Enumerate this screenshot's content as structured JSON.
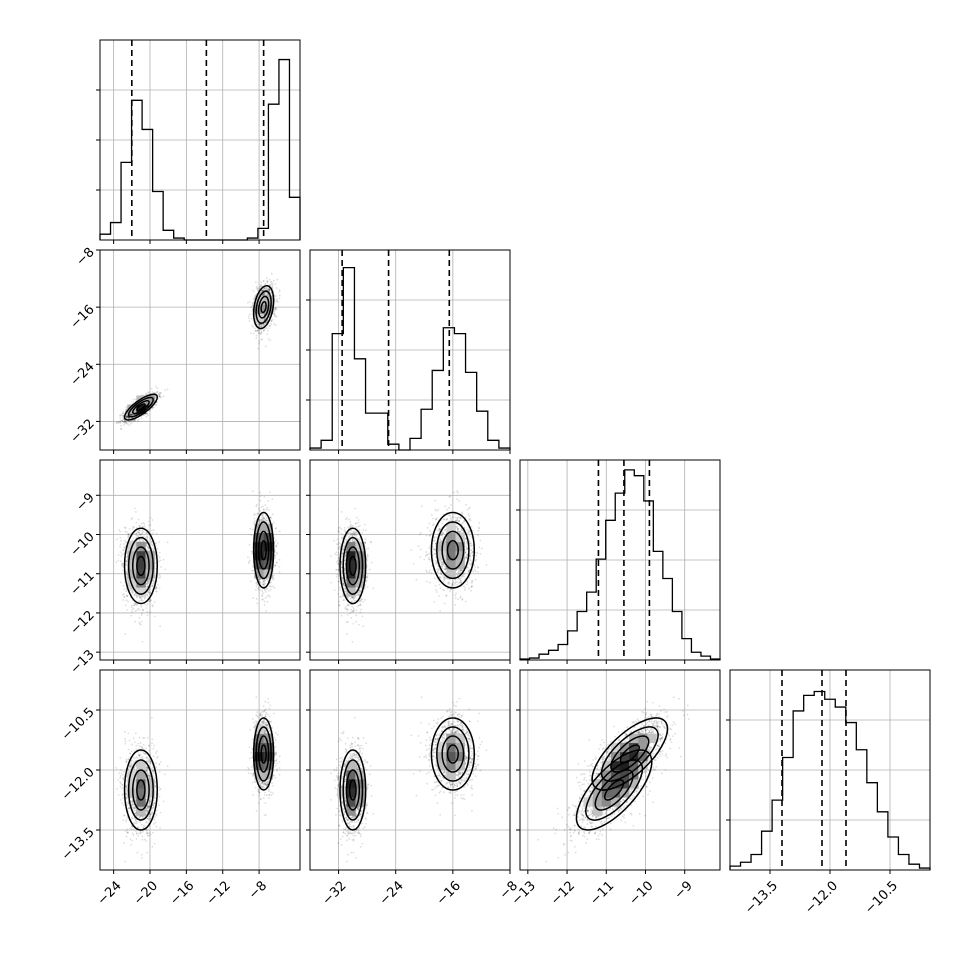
{
  "chart_data": {
    "type": "corner",
    "parameters": [
      {
        "range": [
          -25.5,
          -3.5
        ],
        "ticks": [
          -24,
          -20,
          -16,
          -12,
          -8
        ],
        "quantiles": [
          -22,
          -13.8,
          -7.5
        ],
        "hist": [
          0.03,
          0.09,
          0.4,
          0.72,
          0.57,
          0.25,
          0.05,
          0.01,
          0,
          0,
          0,
          0,
          0,
          0,
          0.01,
          0.06,
          0.7,
          0.93,
          0.22
        ]
      },
      {
        "range": [
          -36,
          -8
        ],
        "ticks": [
          -32,
          -24,
          -16,
          -8
        ],
        "quantiles": [
          -31.5,
          -25,
          -16.5
        ],
        "hist": [
          0.01,
          0.05,
          0.6,
          0.94,
          0.47,
          0.19,
          0.19,
          0.03,
          0.0,
          0.06,
          0.21,
          0.41,
          0.63,
          0.6,
          0.4,
          0.2,
          0.05,
          0.01
        ]
      },
      {
        "range": [
          -13.2,
          -8.1
        ],
        "ticks": [
          -13,
          -12,
          -11,
          -10,
          -9
        ],
        "quantiles": [
          -11.2,
          -10.55,
          -9.9
        ],
        "hist": [
          0.005,
          0.01,
          0.03,
          0.05,
          0.08,
          0.15,
          0.25,
          0.35,
          0.52,
          0.72,
          0.86,
          0.98,
          0.95,
          0.82,
          0.56,
          0.42,
          0.25,
          0.11,
          0.04,
          0.02,
          0.005
        ]
      },
      {
        "range": [
          -14.5,
          -9.5
        ],
        "ticks": [
          -13.5,
          -12.0,
          -10.5
        ],
        "quantiles": [
          -13.2,
          -12.2,
          -11.6
        ],
        "hist": [
          0.02,
          0.04,
          0.08,
          0.2,
          0.36,
          0.58,
          0.82,
          0.9,
          0.92,
          0.88,
          0.84,
          0.76,
          0.62,
          0.45,
          0.3,
          0.17,
          0.08,
          0.03,
          0.01
        ]
      }
    ],
    "tick_label_text": [
      [
        "−24",
        "−20",
        "−16",
        "−12",
        "−8"
      ],
      [
        "−32",
        "−24",
        "−16",
        "−8"
      ],
      [
        "−13",
        "−12",
        "−11",
        "−10",
        "−9"
      ],
      [
        "−13.5",
        "−12.0",
        "−10.5"
      ]
    ],
    "modes": [
      {
        "center": [
          -21,
          -30
        ],
        "sd": [
          0.9,
          0.9
        ],
        "rho": 0.78,
        "weight": 0.5,
        "p2": {
          "center": -10.8,
          "sd": 0.48
        },
        "p3": {
          "center": -12.5,
          "sd": 0.5
        }
      },
      {
        "center": [
          -7.5,
          -16
        ],
        "sd": [
          0.55,
          1.5
        ],
        "rho": 0.3,
        "weight": 0.5,
        "p2": {
          "center": -10.4,
          "sd": 0.48
        },
        "p3": {
          "center": -11.6,
          "sd": 0.45
        }
      }
    ],
    "p2_p3_correlation": 0.7,
    "grid": true,
    "contour_levels_sigma": [
      0.5,
      1.0,
      1.5,
      2.0
    ]
  }
}
